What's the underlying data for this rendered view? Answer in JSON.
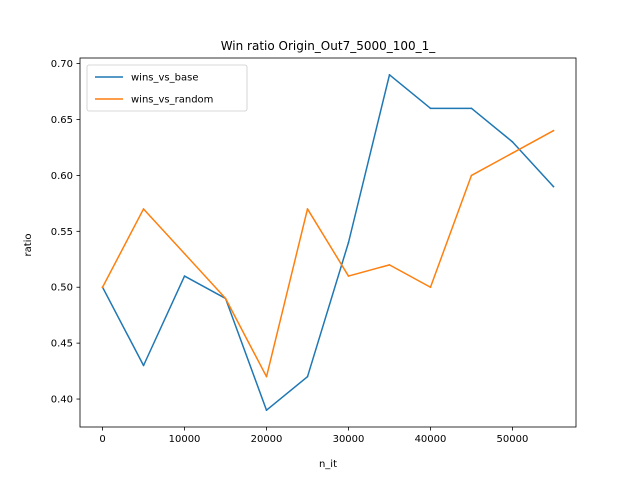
{
  "chart_data": {
    "type": "line",
    "title": "Win ratio Origin_Out7_5000_100_1_",
    "xlabel": "n_it",
    "ylabel": "ratio",
    "x": [
      0,
      5000,
      10000,
      15000,
      20000,
      25000,
      30000,
      35000,
      40000,
      45000,
      50000,
      55000
    ],
    "series": [
      {
        "name": "wins_vs_base",
        "color": "#1f77b4",
        "values": [
          0.5,
          0.43,
          0.51,
          0.49,
          0.39,
          0.42,
          0.54,
          0.69,
          0.66,
          0.66,
          0.63,
          0.59
        ]
      },
      {
        "name": "wins_vs_random",
        "color": "#ff7f0e",
        "values": [
          0.5,
          0.57,
          0.53,
          0.49,
          0.42,
          0.57,
          0.51,
          0.52,
          0.5,
          0.6,
          0.62,
          0.64
        ]
      }
    ],
    "xlim": [
      -2750,
      57750
    ],
    "ylim": [
      0.375,
      0.705
    ],
    "xticks": [
      0,
      10000,
      20000,
      30000,
      40000,
      50000
    ],
    "yticks": [
      0.4,
      0.45,
      0.5,
      0.55,
      0.6,
      0.65,
      0.7
    ],
    "ytick_labels": [
      "0.40",
      "0.45",
      "0.50",
      "0.55",
      "0.60",
      "0.65",
      "0.70"
    ],
    "grid": false,
    "legend_position": "top-left"
  }
}
